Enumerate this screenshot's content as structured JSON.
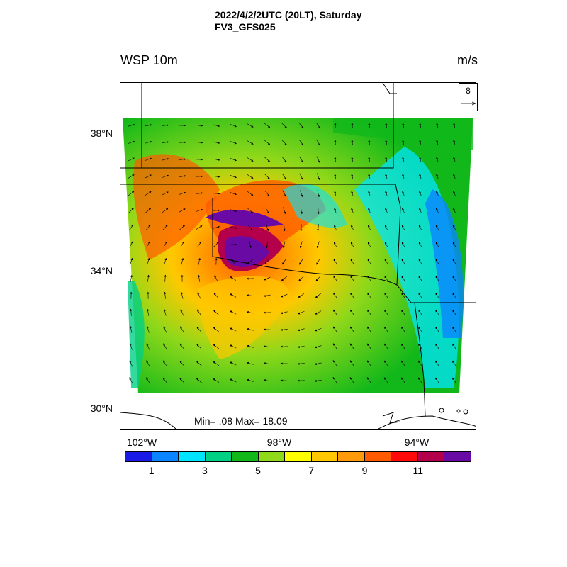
{
  "header": {
    "title_line1": "2022/4/2/2UTC (20LT), Saturday",
    "title_line2": "FV3_GFS025"
  },
  "variable": {
    "name": "WSP 10m",
    "units": "m/s"
  },
  "reference_vector": {
    "magnitude": "8",
    "icon": "arrow-right-icon"
  },
  "stats": {
    "text": "Min= .08 Max= 18.09",
    "min": 0.08,
    "max": 18.09
  },
  "axes": {
    "latitude_labels": [
      "38°N",
      "34°N",
      "30°N"
    ],
    "longitude_labels": [
      "102°W",
      "98°W",
      "94°W"
    ]
  },
  "colorbar": {
    "colors": [
      "#1a1ae6",
      "#0a84ff",
      "#00e5ff",
      "#00d084",
      "#12b81a",
      "#8fd81a",
      "#ffff00",
      "#ffc800",
      "#ff9a0a",
      "#ff5a00",
      "#ff0a0a",
      "#b4004b",
      "#6a0aa5"
    ],
    "labels": [
      "1",
      "3",
      "5",
      "7",
      "9",
      "11"
    ]
  }
}
